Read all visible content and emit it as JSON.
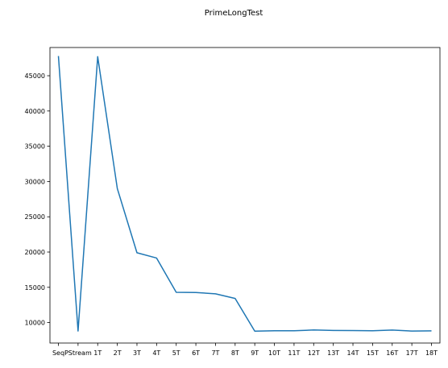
{
  "chart_data": {
    "type": "line",
    "title": "PrimeLongTest",
    "xlabel": "",
    "ylabel": "",
    "categories": [
      "Seq",
      "PStream",
      "1T",
      "2T",
      "3T",
      "4T",
      "5T",
      "6T",
      "7T",
      "8T",
      "9T",
      "10T",
      "11T",
      "12T",
      "13T",
      "14T",
      "15T",
      "16T",
      "17T",
      "18T"
    ],
    "values": [
      47800,
      8800,
      47700,
      29000,
      19900,
      19150,
      14300,
      14270,
      14080,
      13420,
      8790,
      8840,
      8840,
      8950,
      8880,
      8870,
      8840,
      8940,
      8800,
      8820
    ],
    "ylim": [
      7100,
      49000
    ],
    "yticks": [
      10000,
      15000,
      20000,
      25000,
      30000,
      35000,
      40000,
      45000
    ],
    "grid": false,
    "color": "#1f77b4"
  }
}
